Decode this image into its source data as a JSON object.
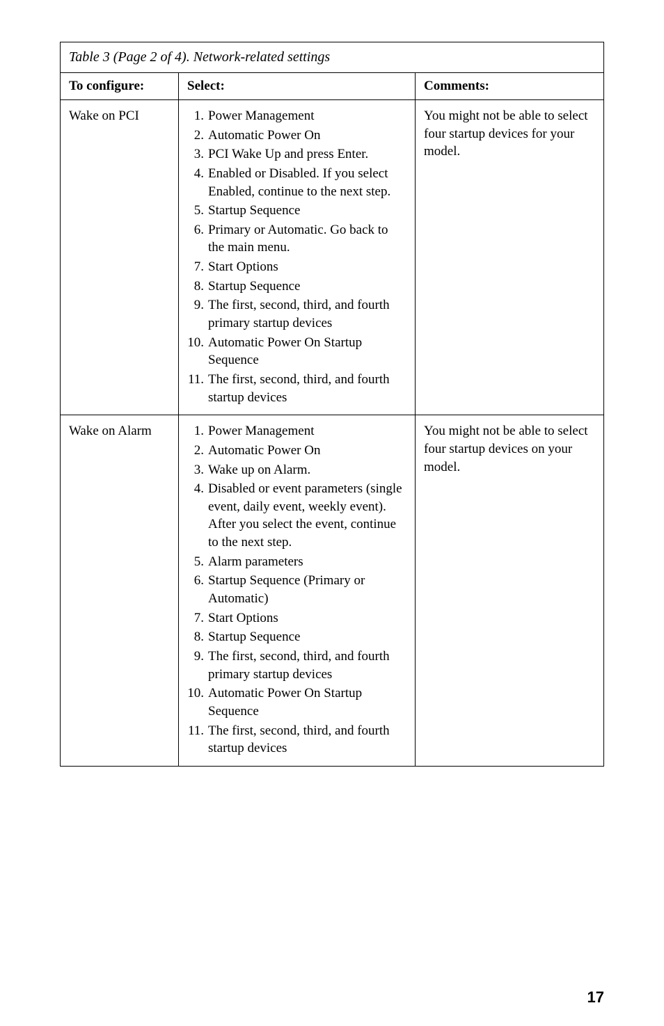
{
  "table": {
    "caption": "Table 3 (Page 2 of 4). Network-related settings",
    "headers": {
      "configure": "To configure:",
      "select": "Select:",
      "comments": "Comments:"
    },
    "rows": [
      {
        "configure": "Wake on PCI",
        "steps": [
          "Power Management",
          "Automatic Power On",
          "PCI Wake Up and press Enter.",
          "Enabled or Disabled. If you select Enabled, continue to the next step.",
          "Startup Sequence",
          "Primary or Automatic. Go back to the main menu.",
          "Start Options",
          "Startup Sequence",
          "The first, second, third, and fourth primary startup devices",
          "Automatic Power On Startup Sequence",
          "The first, second, third, and fourth startup devices"
        ],
        "comments": "You might not be able to select four startup devices for your model."
      },
      {
        "configure": "Wake on Alarm",
        "steps": [
          "Power Management",
          "Automatic Power On",
          "Wake up on Alarm.",
          "Disabled or event parameters (single event, daily event, weekly event).  After you select the event, continue to the next step.",
          "Alarm parameters",
          "Startup Sequence (Primary or Automatic)",
          "Start Options",
          "Startup Sequence",
          "The first, second, third, and fourth primary startup devices",
          "Automatic Power On Startup Sequence",
          "The first, second, third, and fourth startup devices"
        ],
        "comments": "You might not be able to select four startup devices on your model."
      }
    ]
  },
  "page_number": "17"
}
